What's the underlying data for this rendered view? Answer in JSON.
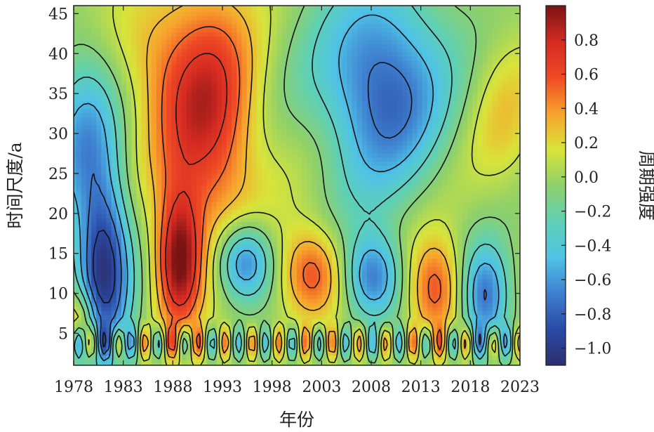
{
  "chart_data": {
    "type": "heatmap",
    "title": "",
    "xlabel": "年份",
    "ylabel": "时间尺度/a",
    "colorbar_label": "周期强度",
    "xlim": [
      1978,
      2023
    ],
    "ylim": [
      1,
      46
    ],
    "x_ticks": [
      1978,
      1983,
      1988,
      1993,
      1998,
      2003,
      2008,
      2013,
      2018,
      2023
    ],
    "y_ticks": [
      5,
      10,
      15,
      20,
      25,
      30,
      35,
      40,
      45
    ],
    "colorbar_range": [
      -1.1,
      1.0
    ],
    "colorbar_ticks": [
      0.8,
      0.6,
      0.4,
      0.2,
      0.0,
      -0.2,
      -0.4,
      -0.6,
      -0.8,
      -1.0
    ],
    "colorbar_tick_labels": [
      "0.8",
      "0.6",
      "0.4",
      "0.2",
      "0.0",
      "−0.2",
      "−0.4",
      "−0.6",
      "−0.8",
      "−1.0"
    ],
    "contour_levels": [
      -0.9,
      -0.7,
      -0.5,
      -0.3,
      -0.1,
      0.1,
      0.3,
      0.5,
      0.7
    ],
    "colormap": [
      "#2c2f6e",
      "#2a4aa6",
      "#3f7fd0",
      "#4fc3e6",
      "#5fd0b4",
      "#8fd06a",
      "#d9e43a",
      "#f7a22d",
      "#ef4a25",
      "#d42a22",
      "#7a1414"
    ],
    "features": [
      {
        "x": 1981,
        "y": 15,
        "value": -1.0
      },
      {
        "x": 1988.5,
        "y": 15,
        "value": 0.9
      },
      {
        "x": 1992,
        "y": 33,
        "value": 0.75
      },
      {
        "x": 1995,
        "y": 14,
        "value": -0.8
      },
      {
        "x": 2002,
        "y": 13,
        "value": 0.6
      },
      {
        "x": 2008,
        "y": 12,
        "value": -0.75
      },
      {
        "x": 2009,
        "y": 37,
        "value": -0.8
      },
      {
        "x": 2014,
        "y": 11,
        "value": 0.6
      },
      {
        "x": 2019,
        "y": 9,
        "value": -0.75
      },
      {
        "x": 2022,
        "y": 31,
        "value": 0.3
      },
      {
        "x": 1979,
        "y": 7,
        "value": 0.4
      }
    ]
  }
}
